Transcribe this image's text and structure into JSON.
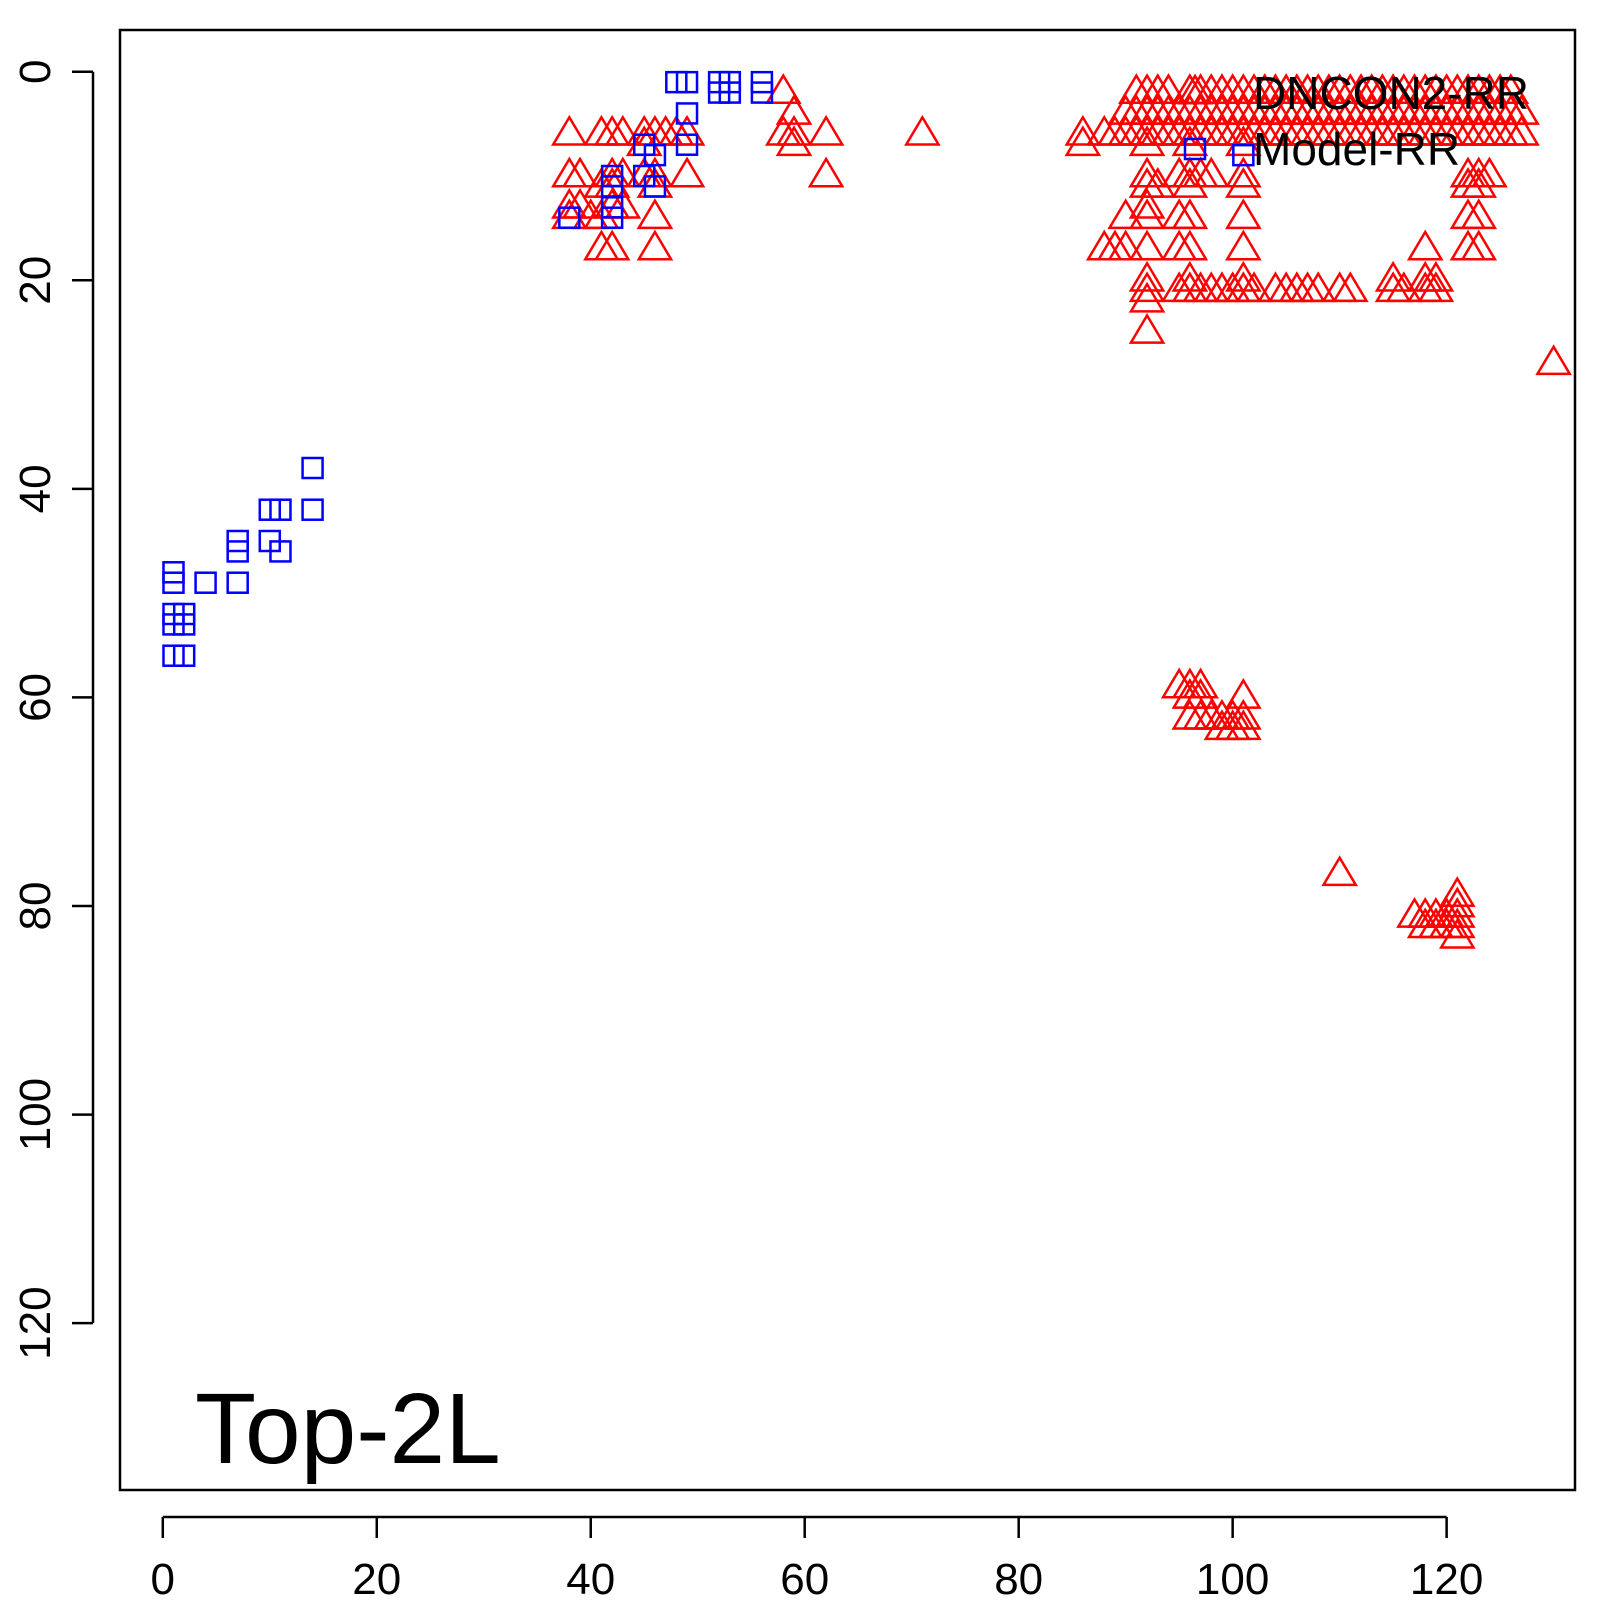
{
  "chart_data": {
    "type": "scatter",
    "title": "",
    "xlabel": "",
    "ylabel": "",
    "annotation": "Top-2L",
    "xlim": [
      -4,
      132
    ],
    "ylim": [
      -4,
      136
    ],
    "y_reversed": true,
    "x_ticks": [
      0,
      20,
      40,
      60,
      80,
      100,
      120
    ],
    "x_tick_labels": [
      "0",
      "20",
      "40",
      "60",
      "80",
      "100",
      "120"
    ],
    "y_ticks": [
      0,
      20,
      40,
      60,
      80,
      100,
      120
    ],
    "y_tick_labels": [
      "0",
      "20",
      "40",
      "60",
      "80",
      "100",
      "120"
    ],
    "grid": false,
    "legend_placement": "top-right",
    "series": [
      {
        "name": "DNCON2-RR",
        "marker": "triangle",
        "color": "#ff0000",
        "points": [
          [
            38,
            6
          ],
          [
            41,
            6
          ],
          [
            42,
            6
          ],
          [
            43,
            6
          ],
          [
            45,
            6
          ],
          [
            46,
            6
          ],
          [
            47,
            6
          ],
          [
            48,
            6
          ],
          [
            49,
            6
          ],
          [
            38,
            10
          ],
          [
            39,
            10
          ],
          [
            42,
            10
          ],
          [
            43,
            10
          ],
          [
            45,
            10
          ],
          [
            46,
            10
          ],
          [
            49,
            10
          ],
          [
            38,
            13
          ],
          [
            39,
            13
          ],
          [
            42,
            13
          ],
          [
            43,
            13
          ],
          [
            46,
            14
          ],
          [
            38,
            14
          ],
          [
            40,
            14
          ],
          [
            41,
            14
          ],
          [
            41,
            17
          ],
          [
            42,
            17
          ],
          [
            46,
            17
          ],
          [
            42,
            11
          ],
          [
            46,
            11
          ],
          [
            41,
            11
          ],
          [
            45,
            7
          ],
          [
            58,
            2
          ],
          [
            59,
            4
          ],
          [
            58,
            6
          ],
          [
            59,
            6
          ],
          [
            62,
            6
          ],
          [
            59,
            7
          ],
          [
            62,
            10
          ],
          [
            71,
            6
          ],
          [
            86,
            6
          ],
          [
            86,
            7
          ],
          [
            88,
            6
          ],
          [
            89,
            6
          ],
          [
            90,
            6
          ],
          [
            91,
            6
          ],
          [
            92,
            6
          ],
          [
            93,
            6
          ],
          [
            94,
            6
          ],
          [
            95,
            6
          ],
          [
            96,
            6
          ],
          [
            97,
            6
          ],
          [
            98,
            6
          ],
          [
            99,
            6
          ],
          [
            100,
            6
          ],
          [
            101,
            6
          ],
          [
            102,
            6
          ],
          [
            103,
            6
          ],
          [
            104,
            6
          ],
          [
            105,
            6
          ],
          [
            106,
            6
          ],
          [
            107,
            6
          ],
          [
            108,
            6
          ],
          [
            109,
            6
          ],
          [
            110,
            6
          ],
          [
            111,
            6
          ],
          [
            112,
            6
          ],
          [
            113,
            6
          ],
          [
            114,
            6
          ],
          [
            115,
            6
          ],
          [
            116,
            6
          ],
          [
            117,
            6
          ],
          [
            118,
            6
          ],
          [
            119,
            6
          ],
          [
            120,
            6
          ],
          [
            121,
            6
          ],
          [
            122,
            6
          ],
          [
            123,
            6
          ],
          [
            124,
            6
          ],
          [
            125,
            6
          ],
          [
            126,
            6
          ],
          [
            127,
            6
          ],
          [
            90,
            4
          ],
          [
            91,
            4
          ],
          [
            92,
            4
          ],
          [
            93,
            4
          ],
          [
            94,
            4
          ],
          [
            95,
            4
          ],
          [
            96,
            4
          ],
          [
            97,
            4
          ],
          [
            98,
            4
          ],
          [
            99,
            4
          ],
          [
            100,
            4
          ],
          [
            101,
            4
          ],
          [
            102,
            4
          ],
          [
            103,
            4
          ],
          [
            104,
            4
          ],
          [
            105,
            4
          ],
          [
            106,
            4
          ],
          [
            107,
            4
          ],
          [
            108,
            4
          ],
          [
            109,
            4
          ],
          [
            110,
            4
          ],
          [
            111,
            4
          ],
          [
            112,
            4
          ],
          [
            113,
            4
          ],
          [
            114,
            4
          ],
          [
            115,
            4
          ],
          [
            116,
            4
          ],
          [
            117,
            4
          ],
          [
            118,
            4
          ],
          [
            119,
            4
          ],
          [
            120,
            4
          ],
          [
            121,
            4
          ],
          [
            122,
            4
          ],
          [
            123,
            4
          ],
          [
            124,
            4
          ],
          [
            125,
            4
          ],
          [
            126,
            4
          ],
          [
            127,
            4
          ],
          [
            91,
            2
          ],
          [
            92,
            2
          ],
          [
            93,
            2
          ],
          [
            94,
            2
          ],
          [
            96,
            2
          ],
          [
            97,
            2
          ],
          [
            98,
            2
          ],
          [
            99,
            2
          ],
          [
            100,
            2
          ],
          [
            101,
            2
          ],
          [
            102,
            2
          ],
          [
            103,
            2
          ],
          [
            104,
            2
          ],
          [
            105,
            2
          ],
          [
            106,
            2
          ],
          [
            107,
            2
          ],
          [
            108,
            2
          ],
          [
            109,
            2
          ],
          [
            110,
            2
          ],
          [
            111,
            2
          ],
          [
            112,
            2
          ],
          [
            113,
            2
          ],
          [
            114,
            2
          ],
          [
            115,
            2
          ],
          [
            116,
            2
          ],
          [
            117,
            2
          ],
          [
            118,
            2
          ],
          [
            119,
            2
          ],
          [
            120,
            2
          ],
          [
            121,
            2
          ],
          [
            122,
            2
          ],
          [
            123,
            2
          ],
          [
            124,
            2
          ],
          [
            125,
            2
          ],
          [
            126,
            2
          ],
          [
            92,
            7
          ],
          [
            96,
            7
          ],
          [
            101,
            7
          ],
          [
            92,
            10
          ],
          [
            93,
            11
          ],
          [
            95,
            10
          ],
          [
            96,
            10
          ],
          [
            97,
            10
          ],
          [
            98,
            10
          ],
          [
            101,
            10
          ],
          [
            92,
            11
          ],
          [
            96,
            11
          ],
          [
            101,
            11
          ],
          [
            122,
            10
          ],
          [
            123,
            10
          ],
          [
            124,
            10
          ],
          [
            122,
            11
          ],
          [
            123,
            11
          ],
          [
            90,
            14
          ],
          [
            92,
            13
          ],
          [
            92,
            14
          ],
          [
            95,
            14
          ],
          [
            96,
            14
          ],
          [
            101,
            14
          ],
          [
            122,
            14
          ],
          [
            123,
            14
          ],
          [
            88,
            17
          ],
          [
            89,
            17
          ],
          [
            90,
            17
          ],
          [
            92,
            17
          ],
          [
            95,
            17
          ],
          [
            96,
            17
          ],
          [
            101,
            17
          ],
          [
            118,
            17
          ],
          [
            122,
            17
          ],
          [
            123,
            17
          ],
          [
            92,
            20
          ],
          [
            96,
            20
          ],
          [
            101,
            20
          ],
          [
            92,
            21
          ],
          [
            95,
            21
          ],
          [
            96,
            21
          ],
          [
            97,
            21
          ],
          [
            98,
            21
          ],
          [
            99,
            21
          ],
          [
            100,
            21
          ],
          [
            101,
            21
          ],
          [
            102,
            21
          ],
          [
            104,
            21
          ],
          [
            105,
            21
          ],
          [
            106,
            21
          ],
          [
            107,
            21
          ],
          [
            108,
            21
          ],
          [
            110,
            21
          ],
          [
            111,
            21
          ],
          [
            115,
            21
          ],
          [
            116,
            21
          ],
          [
            118,
            21
          ],
          [
            119,
            21
          ],
          [
            115,
            20
          ],
          [
            118,
            20
          ],
          [
            119,
            20
          ],
          [
            92,
            22
          ],
          [
            92,
            25
          ],
          [
            130,
            28
          ],
          [
            95,
            59
          ],
          [
            96,
            59
          ],
          [
            97,
            59
          ],
          [
            96,
            60
          ],
          [
            97,
            60
          ],
          [
            101,
            60
          ],
          [
            96,
            62
          ],
          [
            97,
            62
          ],
          [
            98,
            62
          ],
          [
            99,
            62
          ],
          [
            100,
            62
          ],
          [
            101,
            62
          ],
          [
            99,
            63
          ],
          [
            100,
            63
          ],
          [
            101,
            63
          ],
          [
            110,
            77
          ],
          [
            121,
            79
          ],
          [
            121,
            80
          ],
          [
            117,
            81
          ],
          [
            118,
            81
          ],
          [
            119,
            81
          ],
          [
            120,
            81
          ],
          [
            121,
            81
          ],
          [
            118,
            82
          ],
          [
            119,
            82
          ],
          [
            120,
            82
          ],
          [
            121,
            82
          ],
          [
            121,
            83
          ]
        ]
      },
      {
        "name": "Model-RR",
        "marker": "square",
        "color": "#0000ff",
        "points": [
          [
            1,
            48
          ],
          [
            1,
            49
          ],
          [
            1,
            52
          ],
          [
            2,
            52
          ],
          [
            1,
            53
          ],
          [
            2,
            53
          ],
          [
            1,
            56
          ],
          [
            2,
            56
          ],
          [
            4,
            49
          ],
          [
            7,
            45
          ],
          [
            7,
            46
          ],
          [
            7,
            49
          ],
          [
            10,
            42
          ],
          [
            11,
            42
          ],
          [
            10,
            45
          ],
          [
            11,
            46
          ],
          [
            14,
            38
          ],
          [
            14,
            42
          ],
          [
            38,
            14
          ],
          [
            42,
            10
          ],
          [
            42,
            11
          ],
          [
            42,
            13
          ],
          [
            42,
            14
          ],
          [
            45,
            7
          ],
          [
            45,
            10
          ],
          [
            46,
            8
          ],
          [
            46,
            11
          ],
          [
            48,
            1
          ],
          [
            49,
            1
          ],
          [
            49,
            4
          ],
          [
            49,
            7
          ],
          [
            52,
            1
          ],
          [
            53,
            1
          ],
          [
            52,
            2
          ],
          [
            53,
            2
          ],
          [
            56,
            1
          ],
          [
            56,
            2
          ],
          [
            101,
            8
          ]
        ]
      }
    ]
  }
}
